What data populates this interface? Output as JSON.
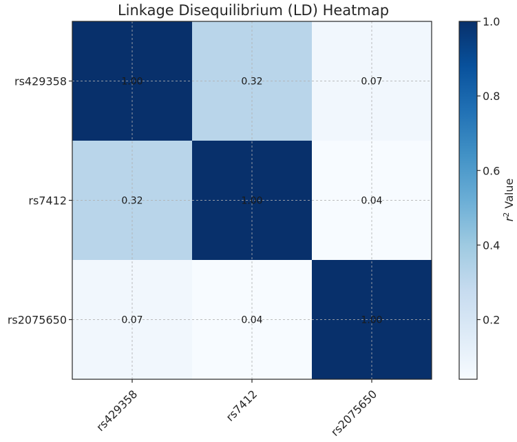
{
  "chart_data": {
    "type": "heatmap",
    "title": "Linkage Disequilibrium (LD) Heatmap",
    "x_labels": [
      "rs429358",
      "rs7412",
      "rs2075650"
    ],
    "y_labels": [
      "rs429358",
      "rs7412",
      "rs2075650"
    ],
    "matrix": [
      [
        1.0,
        0.32,
        0.07
      ],
      [
        0.32,
        1.0,
        0.04
      ],
      [
        0.07,
        0.04,
        1.0
      ]
    ],
    "cell_labels": [
      [
        "1.00",
        "0.32",
        "0.07"
      ],
      [
        "0.32",
        "1.00",
        "0.04"
      ],
      [
        "0.07",
        "0.04",
        "1.00"
      ]
    ],
    "colormap": "Blues",
    "colorbar": {
      "label_prefix": "r",
      "label_superscript": "2",
      "label_suffix": " Value",
      "range": [
        0.04,
        1.0
      ],
      "ticks": [
        0.2,
        0.4,
        0.6,
        0.8,
        1.0
      ],
      "tick_labels": [
        "0.2",
        "0.4",
        "0.6",
        "0.8",
        "1.0"
      ]
    },
    "grid": true,
    "xtick_rotation_deg": 45
  }
}
